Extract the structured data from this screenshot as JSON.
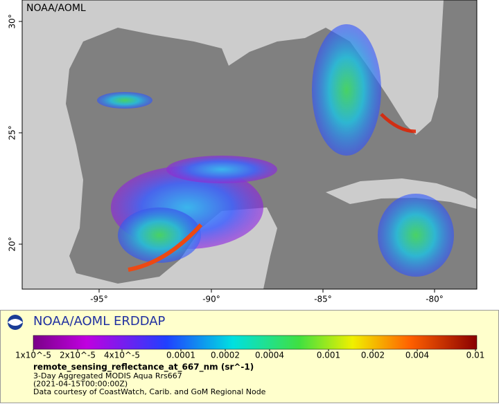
{
  "map": {
    "credit": "NOAA/AOML",
    "x_tick_labels": [
      "-95°",
      "-90°",
      "-85°",
      "-80°"
    ],
    "y_tick_labels": [
      "20°",
      "25°",
      "30°"
    ]
  },
  "legend": {
    "title": "NOAA/AOML ERDDAP",
    "colorbar_labels": [
      "1x10^-5",
      "2x10^-5",
      "4x10^-5",
      "0.0001",
      "0.0002",
      "0.0004",
      "0.001",
      "0.002",
      "0.004",
      "0.01"
    ],
    "variable": "remote_sensing_reflectance_at_667_nm (sr^-1)",
    "lines": [
      "3-Day Aggregated MODIS Aqua Rrs667",
      "(2021-04-15T00:00:00Z)",
      "Data courtesy of CoastWatch, Carib. and GoM Regional Node"
    ]
  }
}
